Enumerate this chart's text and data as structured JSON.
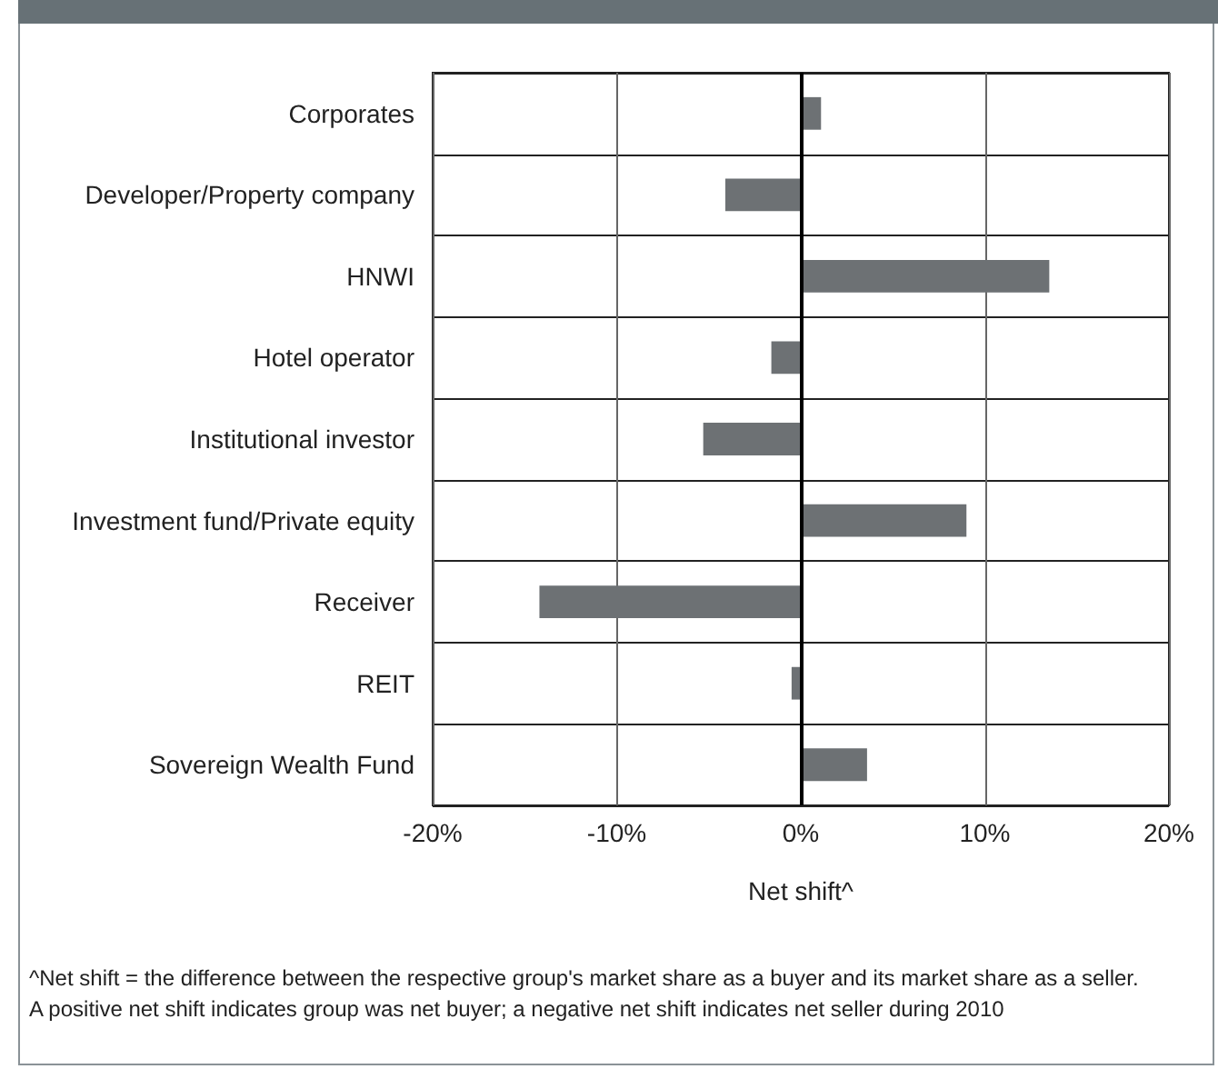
{
  "chart_data": {
    "type": "bar",
    "orientation": "horizontal",
    "categories": [
      "Corporates",
      "Developer/Property company",
      "HNWI",
      "Hotel operator",
      "Institutional investor",
      "Investment fund/Private equity",
      "Receiver",
      "REIT",
      "Sovereign Wealth Fund"
    ],
    "values": [
      1.1,
      -4.1,
      13.5,
      -1.6,
      -5.3,
      9.0,
      -14.2,
      -0.5,
      3.6
    ],
    "color": "#6d7174",
    "xlim": [
      -20,
      20
    ],
    "xticks": [
      {
        "value": -20,
        "label": "-20%"
      },
      {
        "value": -10,
        "label": "-10%"
      },
      {
        "value": 0,
        "label": "0%"
      },
      {
        "value": 10,
        "label": "10%"
      },
      {
        "value": 20,
        "label": "20%"
      }
    ],
    "xlabel": "Net shift^",
    "grid": true,
    "annotations": [
      "^Net shift = the difference between the respective group's market share as a buyer and its market share as a seller.",
      "A positive net shift indicates group was net buyer; a negative net shift indicates net seller during 2010"
    ]
  }
}
